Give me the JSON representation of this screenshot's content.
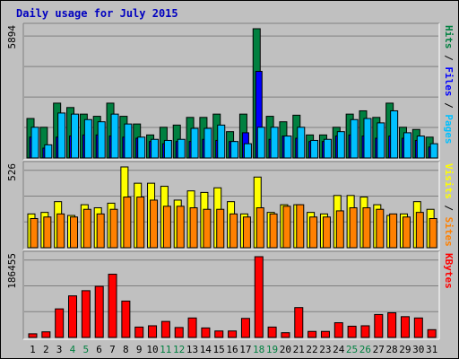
{
  "title": "Daily usage for July 2015",
  "colors": {
    "hits": "#008040",
    "files": "#0000ff",
    "pages": "#00c0ff",
    "visits": "#ffff00",
    "sites": "#ff8000",
    "kbytes": "#ff0000",
    "weekend": "#008040",
    "weekday": "#000000",
    "panel_bg": "#c0c0c0"
  },
  "chart_data": [
    {
      "type": "bar",
      "panel": "top",
      "ymax_label": "5894",
      "ylim": [
        0,
        5894
      ],
      "legend": [
        "Pages",
        "Files",
        "Hits"
      ],
      "legend_sep": "/",
      "categories": [
        "1",
        "2",
        "3",
        "4",
        "5",
        "6",
        "7",
        "8",
        "9",
        "10",
        "11",
        "12",
        "13",
        "14",
        "15",
        "16",
        "17",
        "18",
        "19",
        "20",
        "21",
        "22",
        "23",
        "24",
        "25",
        "26",
        "27",
        "28",
        "29",
        "30",
        "31"
      ],
      "series": [
        {
          "name": "Hits",
          "values": [
            1800,
            1400,
            2500,
            2300,
            2000,
            1900,
            2500,
            1900,
            1550,
            1050,
            1400,
            1500,
            1850,
            1850,
            2000,
            1200,
            2000,
            5894,
            1900,
            1650,
            1950,
            1050,
            1050,
            1400,
            2000,
            2150,
            1850,
            2500,
            1400,
            1300,
            950
          ]
        },
        {
          "name": "Files",
          "values": [
            950,
            450,
            950,
            1000,
            1050,
            1050,
            1000,
            950,
            900,
            750,
            650,
            750,
            750,
            850,
            800,
            750,
            1150,
            3950,
            850,
            1000,
            900,
            750,
            750,
            1000,
            1050,
            1000,
            900,
            1000,
            900,
            800,
            500
          ]
        },
        {
          "name": "Pages",
          "values": [
            1400,
            600,
            2050,
            2000,
            1750,
            1650,
            2000,
            1550,
            950,
            850,
            800,
            850,
            1350,
            1350,
            1500,
            750,
            650,
            1400,
            1400,
            1000,
            1400,
            800,
            850,
            1200,
            1750,
            1800,
            1600,
            2150,
            1150,
            1000,
            650
          ]
        }
      ]
    },
    {
      "type": "bar",
      "panel": "middle",
      "ymax_label": "526",
      "ylim": [
        0,
        526
      ],
      "legend": [
        "Sites",
        "Visits"
      ],
      "legend_sep": "/",
      "categories": [
        "1",
        "2",
        "3",
        "4",
        "5",
        "6",
        "7",
        "8",
        "9",
        "10",
        "11",
        "12",
        "13",
        "14",
        "15",
        "16",
        "17",
        "18",
        "19",
        "20",
        "21",
        "22",
        "23",
        "24",
        "25",
        "26",
        "27",
        "28",
        "29",
        "30",
        "31"
      ],
      "series": [
        {
          "name": "Visits",
          "values": [
            220,
            230,
            300,
            210,
            280,
            260,
            290,
            526,
            420,
            420,
            400,
            310,
            370,
            360,
            390,
            300,
            220,
            460,
            230,
            280,
            280,
            230,
            220,
            340,
            340,
            330,
            280,
            210,
            220,
            300,
            250
          ]
        },
        {
          "name": "Sites",
          "values": [
            190,
            200,
            220,
            200,
            250,
            220,
            250,
            330,
            330,
            310,
            270,
            270,
            260,
            250,
            250,
            220,
            200,
            260,
            220,
            270,
            280,
            200,
            200,
            240,
            260,
            260,
            250,
            220,
            200,
            230,
            190
          ]
        }
      ]
    },
    {
      "type": "bar",
      "panel": "bottom",
      "ymax_label": "186455",
      "ylim": [
        0,
        186455
      ],
      "legend": [
        "KBytes"
      ],
      "legend_sep": "",
      "categories": [
        "1",
        "2",
        "3",
        "4",
        "5",
        "6",
        "7",
        "8",
        "9",
        "10",
        "11",
        "12",
        "13",
        "14",
        "15",
        "16",
        "17",
        "18",
        "19",
        "20",
        "21",
        "22",
        "23",
        "24",
        "25",
        "26",
        "27",
        "28",
        "29",
        "30",
        "31"
      ],
      "weekend_days": [
        4,
        5,
        11,
        12,
        18,
        19,
        25,
        26
      ],
      "series": [
        {
          "name": "KBytes",
          "values": [
            8500,
            13000,
            66000,
            96000,
            108000,
            118000,
            146000,
            84000,
            24000,
            27000,
            37000,
            23000,
            45000,
            22000,
            15000,
            15000,
            44000,
            186455,
            24000,
            11000,
            69000,
            14000,
            14000,
            34000,
            26000,
            27000,
            53000,
            57000,
            48000,
            45000,
            18000
          ]
        }
      ]
    }
  ]
}
